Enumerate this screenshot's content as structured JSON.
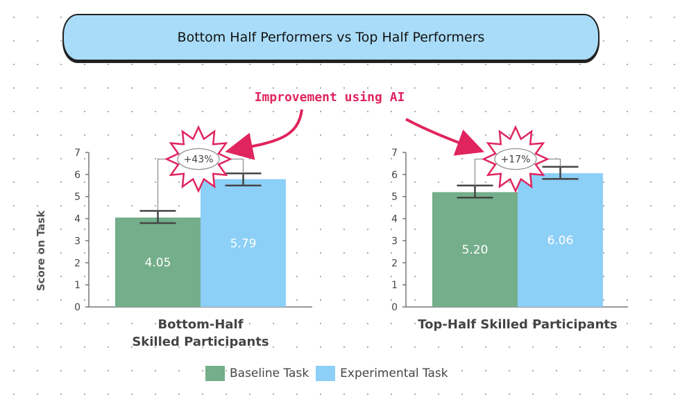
{
  "title": "Bottom Half Performers vs Top Half Performers",
  "annotation": "Improvement using AI",
  "colors": {
    "baseline": "#74ae8a",
    "experimental": "#8ccff7",
    "accent": "#e0245e"
  },
  "chart_data": [
    {
      "type": "bar",
      "category_label_lines": [
        "Bottom-Half",
        "Skilled Participants"
      ],
      "series": [
        {
          "name": "Baseline Task",
          "value": 4.05,
          "value_label": "4.05",
          "error": [
            3.8,
            4.35
          ]
        },
        {
          "name": "Experimental Task",
          "value": 5.79,
          "value_label": "5.79",
          "error": [
            5.5,
            6.05
          ]
        }
      ],
      "improvement_label": "+43%",
      "ylabel": "Score on Task",
      "ylim": [
        0,
        7
      ],
      "yticks": [
        "0",
        "1",
        "2",
        "3",
        "4",
        "5",
        "6",
        "7"
      ]
    },
    {
      "type": "bar",
      "category_label_lines": [
        "Top-Half Skilled Participants"
      ],
      "series": [
        {
          "name": "Baseline Task",
          "value": 5.2,
          "value_label": "5.20",
          "error": [
            4.95,
            5.5
          ]
        },
        {
          "name": "Experimental Task",
          "value": 6.06,
          "value_label": "6.06",
          "error": [
            5.8,
            6.35
          ]
        }
      ],
      "improvement_label": "+17%",
      "ylim": [
        0,
        7
      ],
      "yticks": [
        "0",
        "1",
        "2",
        "3",
        "4",
        "5",
        "6",
        "7"
      ]
    }
  ],
  "legend": [
    "Baseline Task",
    "Experimental Task"
  ]
}
